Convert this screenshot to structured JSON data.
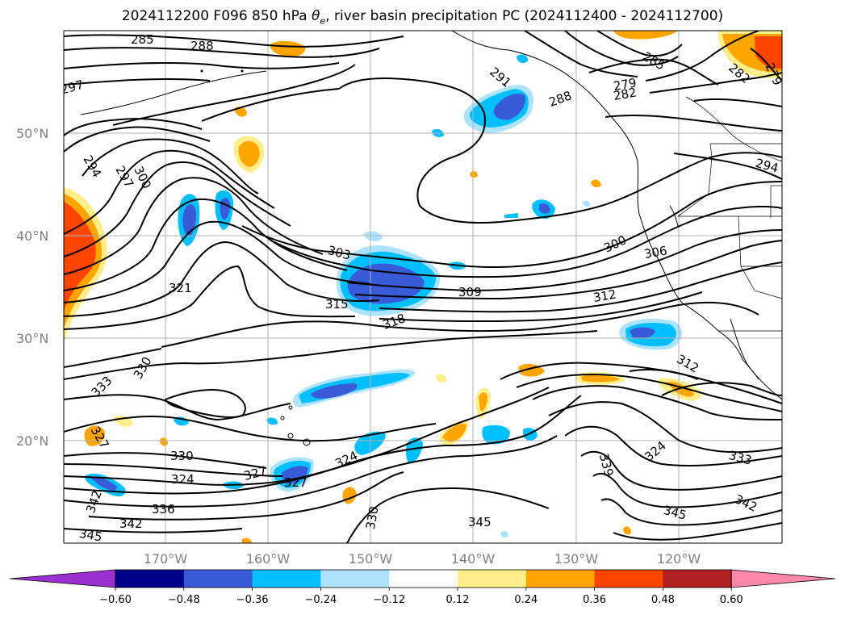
{
  "title": {
    "prefix": "2024112200 F096 850 hPa ",
    "symbol": "θ",
    "symbol_sub": "e",
    "suffix": ", river basin precipitation PC (2024112400 - 2024112700)"
  },
  "map": {
    "lat_labels": [
      "50°N",
      "40°N",
      "30°N",
      "20°N"
    ],
    "lon_labels": [
      "170°W",
      "160°W",
      "150°W",
      "140°W",
      "130°W",
      "120°W"
    ],
    "label_color": "#808080",
    "gridline_color": "#b0b0b0"
  },
  "contour_labels": {
    "l285": "285",
    "l288": "288",
    "l297a": "297",
    "l294": "294",
    "l297b": "297",
    "l300a": "300",
    "l291": "291",
    "l288b": "288",
    "l279a": "279",
    "l285b": "285",
    "l282a": "282",
    "l282b": "282",
    "l279b": "279",
    "l294b": "294",
    "l300b": "300",
    "l306": "306",
    "l303": "303",
    "l321": "321",
    "l315": "315",
    "l318": "318",
    "l309": "309",
    "l312a": "312",
    "l312b": "312",
    "l333a": "333",
    "l330a": "330",
    "l327a": "327",
    "l330b": "330",
    "l324a": "324",
    "l327b": "327",
    "l327c": "327",
    "l324b": "324",
    "l339": "339",
    "l324c": "324",
    "l333b": "333",
    "l342a": "342",
    "l336": "336",
    "l342b": "342",
    "l330c": "330",
    "l345a": "345",
    "l345b": "345",
    "l345c": "345",
    "l342c": "342"
  },
  "colorbar": {
    "ticks": [
      "−0.60",
      "−0.48",
      "−0.36",
      "−0.24",
      "−0.12",
      "0.12",
      "0.24",
      "0.36",
      "0.48",
      "0.60"
    ],
    "colors": [
      "#9b30d0",
      "#00008b",
      "#3a5bd9",
      "#00bfff",
      "#aee3ff",
      "#ffffff",
      "#ffee8a",
      "#ffa500",
      "#ff4500",
      "#b22222",
      "#ff88aa"
    ]
  }
}
